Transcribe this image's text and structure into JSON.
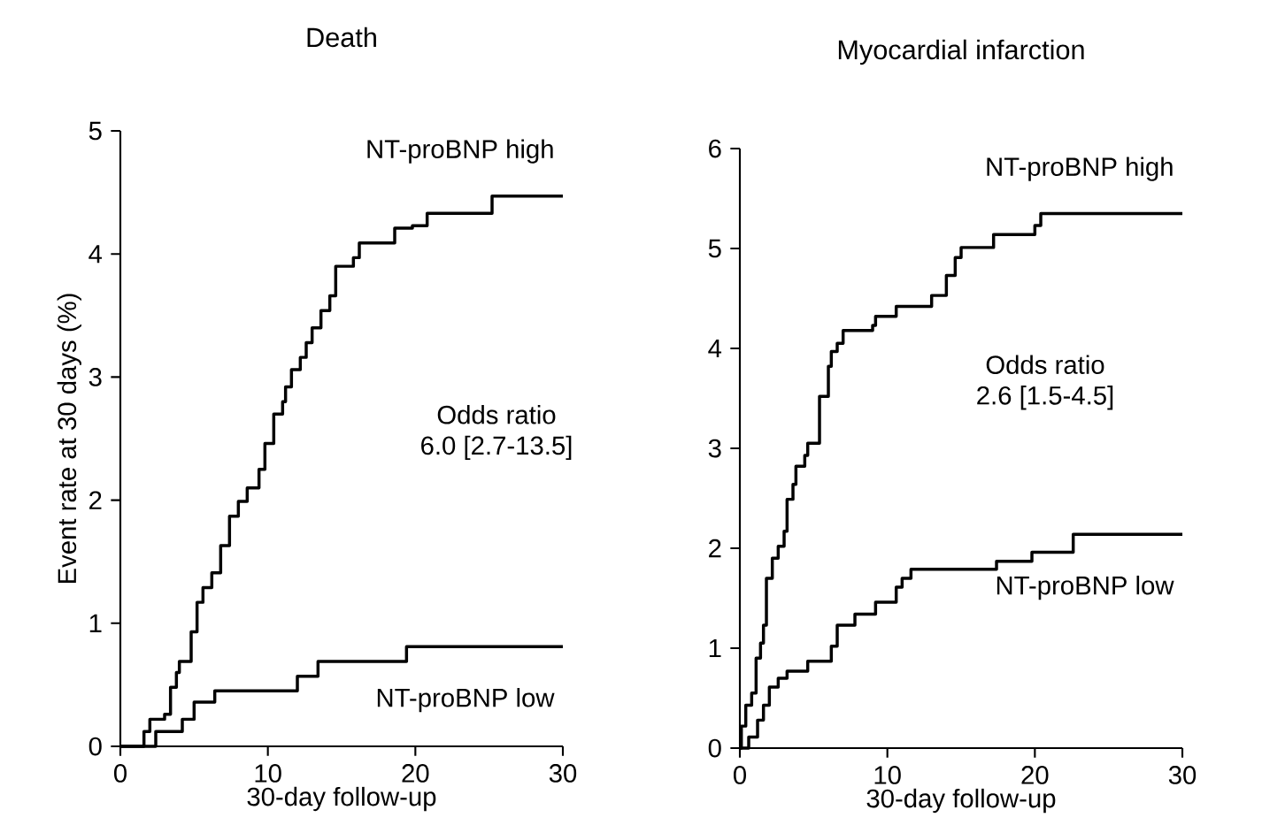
{
  "chart_data": [
    {
      "type": "step",
      "title": "Death",
      "xlabel": "30-day follow-up",
      "ylabel": "Event rate at 30 days (%)",
      "xlim": [
        0,
        30
      ],
      "xticks": [
        0,
        10,
        20,
        30
      ],
      "ylim": [
        0,
        5
      ],
      "yticks": [
        0,
        1,
        2,
        3,
        4,
        5
      ],
      "annotations": [
        "Odds ratio",
        "6.0 [2.7-13.5]"
      ],
      "series": [
        {
          "name": "NT-proBNP high",
          "color": "#000000",
          "x": [
            0,
            1.6,
            2.0,
            3.0,
            3.4,
            3.8,
            4.0,
            4.8,
            5.2,
            5.6,
            6.2,
            6.8,
            7.4,
            8.0,
            8.6,
            9.4,
            9.8,
            10.4,
            11.0,
            11.2,
            11.6,
            12.2,
            12.6,
            13.0,
            13.6,
            14.2,
            14.6,
            15.8,
            16.2,
            18.6,
            19.8,
            20.8,
            25.2,
            30
          ],
          "values": [
            0,
            0.12,
            0.22,
            0.26,
            0.48,
            0.6,
            0.69,
            0.93,
            1.17,
            1.29,
            1.41,
            1.63,
            1.87,
            1.99,
            2.1,
            2.25,
            2.46,
            2.7,
            2.8,
            2.92,
            3.06,
            3.16,
            3.28,
            3.4,
            3.54,
            3.66,
            3.9,
            3.97,
            4.09,
            4.21,
            4.23,
            4.33,
            4.47,
            4.47
          ]
        },
        {
          "name": "NT-proBNP low",
          "color": "#000000",
          "x": [
            0,
            2.4,
            4.2,
            5.0,
            6.4,
            12.0,
            13.4,
            19.4,
            30
          ],
          "values": [
            0,
            0.12,
            0.22,
            0.36,
            0.45,
            0.57,
            0.69,
            0.81,
            0.81
          ]
        }
      ]
    },
    {
      "type": "step",
      "title": "Myocardial infarction",
      "xlabel": "30-day follow-up",
      "xlim": [
        0,
        30
      ],
      "xticks": [
        0,
        10,
        20,
        30
      ],
      "ylim": [
        0,
        6
      ],
      "yticks": [
        0,
        1,
        2,
        3,
        4,
        5,
        6
      ],
      "annotations": [
        "Odds ratio",
        "2.6 [1.5-4.5]"
      ],
      "series": [
        {
          "name": "NT-proBNP high",
          "color": "#000000",
          "x": [
            0,
            0.1,
            0.4,
            0.8,
            1.1,
            1.4,
            1.6,
            1.8,
            2.2,
            2.6,
            3.0,
            3.2,
            3.6,
            3.8,
            4.4,
            4.6,
            5.4,
            6.0,
            6.2,
            6.6,
            7.0,
            9.0,
            9.2,
            10.6,
            13.0,
            14.0,
            14.6,
            15.0,
            17.2,
            20.0,
            20.4,
            30
          ],
          "values": [
            0,
            0.22,
            0.43,
            0.55,
            0.9,
            1.05,
            1.23,
            1.7,
            1.9,
            2.02,
            2.17,
            2.49,
            2.64,
            2.82,
            2.93,
            3.05,
            3.52,
            3.82,
            3.97,
            4.05,
            4.18,
            4.23,
            4.32,
            4.42,
            4.53,
            4.73,
            4.91,
            5.01,
            5.14,
            5.23,
            5.35,
            5.35
          ]
        },
        {
          "name": "NT-proBNP low",
          "color": "#000000",
          "x": [
            0,
            0.6,
            1.2,
            1.6,
            2.0,
            2.6,
            3.2,
            4.6,
            6.2,
            6.6,
            7.8,
            9.2,
            10.6,
            11.0,
            11.6,
            17.4,
            19.8,
            22.6,
            30
          ],
          "values": [
            0,
            0.11,
            0.28,
            0.43,
            0.61,
            0.7,
            0.77,
            0.87,
            1.02,
            1.23,
            1.34,
            1.46,
            1.61,
            1.7,
            1.79,
            1.87,
            1.96,
            2.14,
            2.14
          ]
        }
      ]
    }
  ]
}
